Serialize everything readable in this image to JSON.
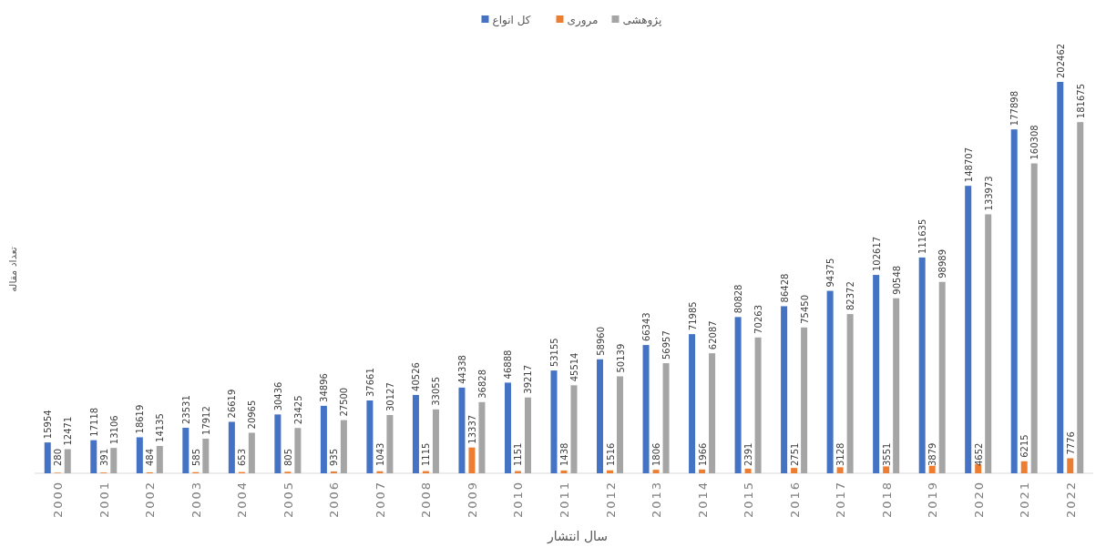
{
  "chart_data": {
    "type": "bar",
    "xlabel": "سال انتشار",
    "ylabel": "تعداد مقاله",
    "categories": [
      "2000",
      "2001",
      "2002",
      "2003",
      "2004",
      "2005",
      "2006",
      "2007",
      "2008",
      "2009",
      "2010",
      "2011",
      "2012",
      "2013",
      "2014",
      "2015",
      "2016",
      "2017",
      "2018",
      "2019",
      "2020",
      "2021",
      "2022"
    ],
    "series": [
      {
        "name": "کل انواع",
        "color": "#4472c4",
        "values": [
          15954,
          17118,
          18619,
          23531,
          26619,
          30436,
          34896,
          37661,
          40526,
          44338,
          46888,
          53155,
          58960,
          66343,
          71985,
          80828,
          86428,
          94375,
          102617,
          111635,
          148707,
          177898,
          202462
        ]
      },
      {
        "name": "مروری",
        "color": "#ed7d31",
        "values": [
          280,
          391,
          484,
          585,
          653,
          805,
          935,
          1043,
          1115,
          13337,
          1151,
          1438,
          1516,
          1806,
          1966,
          2391,
          2751,
          3128,
          3551,
          3879,
          4652,
          6215,
          7776
        ]
      },
      {
        "name": "پژوهشی",
        "color": "#a5a5a5",
        "values": [
          12471,
          13106,
          14135,
          17912,
          20965,
          23425,
          27500,
          30127,
          33055,
          36828,
          39217,
          45514,
          50139,
          56957,
          62087,
          70263,
          75450,
          82372,
          90548,
          98989,
          133973,
          160308,
          181675
        ]
      }
    ],
    "data_labels": true,
    "legend": "top"
  }
}
